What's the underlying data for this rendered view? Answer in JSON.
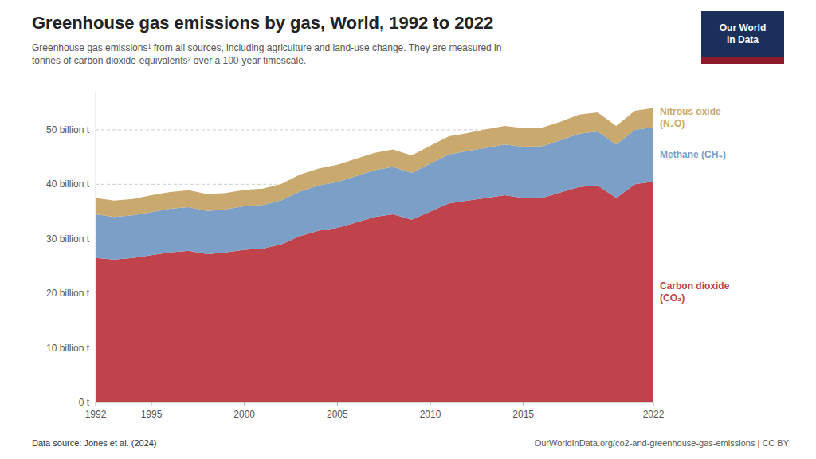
{
  "chart_data": {
    "type": "area",
    "stacked": true,
    "title": "Greenhouse gas emissions by gas, World, 1992 to 2022",
    "subtitle": "Greenhouse gas emissions¹ from all sources, including agriculture and land-use change. They are measured in\ntonnes of carbon dioxide-equivalents² over a 100-year timescale.",
    "x": [
      1992,
      1993,
      1994,
      1995,
      1996,
      1997,
      1998,
      1999,
      2000,
      2001,
      2002,
      2003,
      2004,
      2005,
      2006,
      2007,
      2008,
      2009,
      2010,
      2011,
      2012,
      2013,
      2014,
      2015,
      2016,
      2017,
      2018,
      2019,
      2020,
      2021,
      2022
    ],
    "series": [
      {
        "name": "Carbon dioxide\n(CO₂)",
        "color": "#c0434b",
        "values": [
          26.5,
          26.2,
          26.5,
          27.0,
          27.5,
          27.8,
          27.2,
          27.5,
          28.0,
          28.2,
          29.0,
          30.5,
          31.5,
          32.0,
          33.0,
          34.0,
          34.5,
          33.5,
          35.0,
          36.5,
          37.0,
          37.5,
          38.0,
          37.5,
          37.5,
          38.5,
          39.5,
          39.8,
          37.5,
          40.0,
          40.5
        ]
      },
      {
        "name": "Methane (CH₄)",
        "color": "#7b9fc7",
        "values": [
          8.0,
          7.8,
          7.8,
          7.9,
          8.0,
          8.0,
          7.9,
          7.9,
          8.0,
          8.0,
          8.1,
          8.2,
          8.3,
          8.4,
          8.5,
          8.6,
          8.7,
          8.6,
          8.8,
          9.0,
          9.1,
          9.2,
          9.3,
          9.4,
          9.5,
          9.6,
          9.8,
          9.9,
          9.8,
          10.0,
          10.0
        ]
      },
      {
        "name": "Nitrous oxide\n(N₂O)",
        "color": "#c9a96e",
        "values": [
          3.0,
          3.0,
          3.0,
          3.1,
          3.1,
          3.1,
          3.1,
          3.0,
          3.0,
          3.0,
          3.0,
          3.1,
          3.1,
          3.2,
          3.2,
          3.2,
          3.2,
          3.2,
          3.3,
          3.3,
          3.3,
          3.4,
          3.4,
          3.4,
          3.4,
          3.4,
          3.5,
          3.5,
          3.4,
          3.5,
          3.5
        ]
      }
    ],
    "xlim": [
      1992,
      2022
    ],
    "xticks": [
      1992,
      1995,
      2000,
      2005,
      2010,
      2015,
      2022
    ],
    "ylim": [
      0,
      57
    ],
    "yticks": [
      {
        "value": 0,
        "label": "0 t"
      },
      {
        "value": 10,
        "label": "10 billion t"
      },
      {
        "value": 20,
        "label": "20 billion t"
      },
      {
        "value": 30,
        "label": "30 billion t"
      },
      {
        "value": 40,
        "label": "40 billion t"
      },
      {
        "value": 50,
        "label": "50 billion t"
      }
    ],
    "grid": true,
    "annotations": [
      "Data source: Jones et al. (2024)",
      "OurWorldInData.org/co2-and-greenhouse-gas-emissions | CC BY",
      "Our World\nin Data"
    ]
  }
}
